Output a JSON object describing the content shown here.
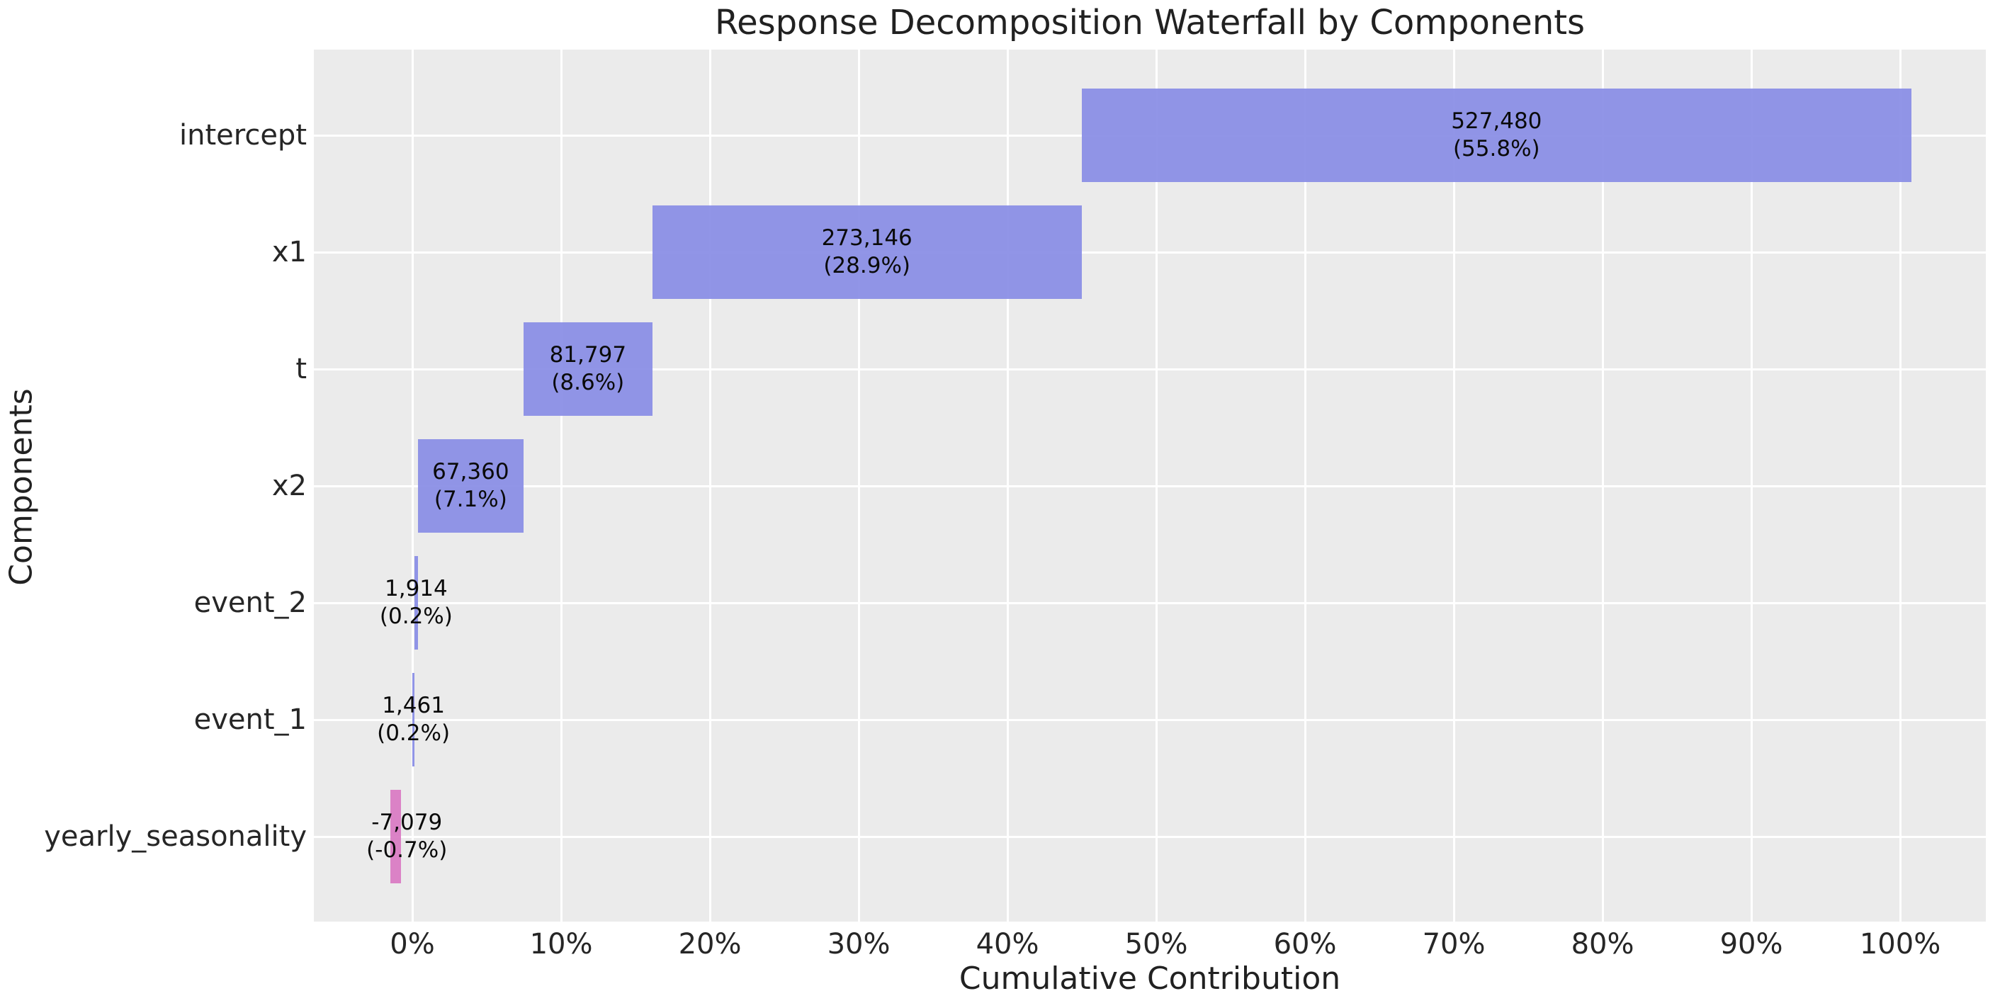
{
  "chart_data": {
    "type": "bar",
    "subtype": "horizontal-waterfall",
    "title": "Response Decomposition Waterfall by Components",
    "xlabel": "Cumulative Contribution",
    "ylabel": "Components",
    "grid": true,
    "legend": false,
    "x_axis": {
      "unit": "percent",
      "tick_values": [
        0,
        10,
        20,
        30,
        40,
        50,
        60,
        70,
        80,
        90,
        100
      ],
      "tick_labels": [
        "0%",
        "10%",
        "20%",
        "30%",
        "40%",
        "50%",
        "60%",
        "70%",
        "80%",
        "90%",
        "100%"
      ],
      "xlim_pct": [
        -6.62,
        105.76
      ]
    },
    "colors": {
      "positive_bar": "#8a8ee6",
      "negative_bar": "#da7bc3",
      "plot_background": "#ebebeb",
      "grid_line": "#ffffff",
      "text": "#212121"
    },
    "categories": [
      "intercept",
      "x1",
      "t",
      "x2",
      "event_2",
      "event_1",
      "yearly_seasonality"
    ],
    "components": [
      {
        "label": "intercept",
        "value": 527480,
        "value_label": "527,480",
        "pct": 55.8,
        "pct_label": "(55.8%)",
        "span_pct": [
          44.99,
          100.75
        ]
      },
      {
        "label": "x1",
        "value": 273146,
        "value_label": "273,146",
        "pct": 28.9,
        "pct_label": "(28.9%)",
        "span_pct": [
          16.12,
          44.99
        ]
      },
      {
        "label": "t",
        "value": 81797,
        "value_label": "81,797",
        "pct": 8.6,
        "pct_label": "(8.6%)",
        "span_pct": [
          7.48,
          16.12
        ]
      },
      {
        "label": "x2",
        "value": 67360,
        "value_label": "67,360",
        "pct": 7.1,
        "pct_label": "(7.1%)",
        "span_pct": [
          0.36,
          7.48
        ]
      },
      {
        "label": "event_2",
        "value": 1914,
        "value_label": "1,914",
        "pct": 0.2,
        "pct_label": "(0.2%)",
        "span_pct": [
          0.15,
          0.36
        ]
      },
      {
        "label": "event_1",
        "value": 1461,
        "value_label": "1,461",
        "pct": 0.2,
        "pct_label": "(0.2%)",
        "span_pct": [
          0.0,
          0.15
        ]
      },
      {
        "label": "yearly_seasonality",
        "value": -7079,
        "value_label": "-7,079",
        "pct": -0.7,
        "pct_label": "(-0.7%)",
        "span_pct": [
          -1.5,
          -0.75
        ],
        "label_center_pct": -0.37
      }
    ]
  }
}
